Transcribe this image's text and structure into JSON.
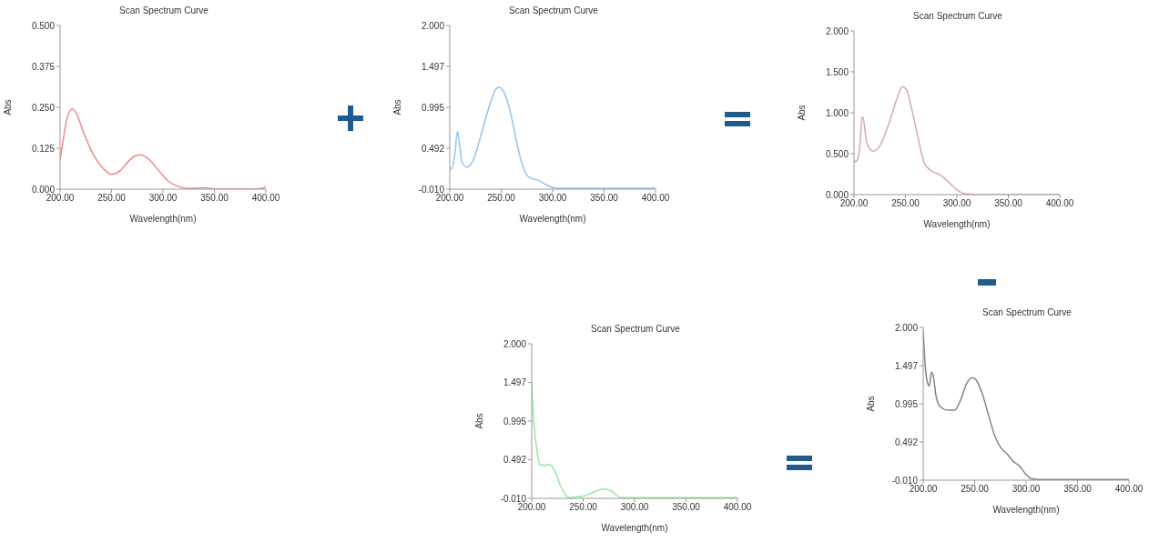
{
  "chart_data": [
    {
      "type": "line",
      "title": "Scan Spectrum Curve",
      "xlabel": "Wavelength(nm)",
      "ylabel": "Abs",
      "color": "#f08a8a",
      "x": [
        200,
        203,
        207,
        212,
        216,
        222,
        230,
        240,
        250,
        258,
        265,
        272,
        278,
        285,
        295,
        305,
        315,
        325,
        340,
        350,
        370,
        390,
        398,
        400
      ],
      "values": [
        0.09,
        0.15,
        0.22,
        0.245,
        0.23,
        0.18,
        0.12,
        0.07,
        0.045,
        0.055,
        0.08,
        0.1,
        0.105,
        0.095,
        0.06,
        0.025,
        0.008,
        0.002,
        0.004,
        0.001,
        0.001,
        0,
        0.004,
        0.008
      ],
      "xlim": [
        200,
        400
      ],
      "xticks": [
        {
          "value": 200,
          "label": "200.00"
        },
        {
          "value": 250,
          "label": "250.00"
        },
        {
          "value": 300,
          "label": "300.00"
        },
        {
          "value": 350,
          "label": "350.00"
        },
        {
          "value": 400,
          "label": "400.00"
        }
      ],
      "ylim": [
        0,
        0.5
      ],
      "yticks": [
        {
          "value": 0,
          "label": "0.000"
        },
        {
          "value": 0.125,
          "label": "0.125"
        },
        {
          "value": 0.25,
          "label": "0.250"
        },
        {
          "value": 0.375,
          "label": "0.375"
        },
        {
          "value": 0.5,
          "label": "0.500"
        }
      ]
    },
    {
      "type": "line",
      "title": "Scan Spectrum Curve",
      "xlabel": "Wavelength(nm)",
      "ylabel": "Abs",
      "color": "#92c5ee",
      "x": [
        200,
        202,
        205,
        207.5,
        209,
        212,
        216.5,
        222.5,
        231.6,
        239,
        245,
        248,
        252.6,
        258.6,
        264.7,
        270.7,
        276.7,
        285.7,
        294.7,
        304,
        310,
        350,
        400
      ],
      "values": [
        0.26,
        0.24,
        0.43,
        0.7,
        0.59,
        0.32,
        0.26,
        0.34,
        0.71,
        1.03,
        1.22,
        1.24,
        1.18,
        0.95,
        0.59,
        0.28,
        0.14,
        0.1,
        0.04,
        0,
        0,
        0,
        0
      ],
      "xlim": [
        200,
        400
      ],
      "xticks": [
        {
          "value": 200,
          "label": "200.00"
        },
        {
          "value": 250,
          "label": "250.00"
        },
        {
          "value": 300,
          "label": "300.00"
        },
        {
          "value": 350,
          "label": "350.00"
        },
        {
          "value": 400,
          "label": "400.00"
        }
      ],
      "ylim": [
        -0.01,
        2
      ],
      "yticks": [
        {
          "value": -0.01,
          "label": "-0.010"
        },
        {
          "value": 0.492,
          "label": "0.492"
        },
        {
          "value": 0.995,
          "label": "0.995"
        },
        {
          "value": 1.497,
          "label": "1.497"
        },
        {
          "value": 2,
          "label": "2.000"
        }
      ]
    },
    {
      "type": "line",
      "title": "Scan Spectrum Curve",
      "xlabel": "Wavelength(nm)",
      "ylabel": "Abs",
      "color": "#d6a8ad",
      "x": [
        200,
        201,
        203.7,
        206,
        207.8,
        209,
        212.4,
        218.6,
        224.8,
        234,
        242,
        247,
        251,
        255.8,
        262,
        268,
        274,
        283.7,
        293,
        302,
        308.5,
        320,
        400
      ],
      "values": [
        0.42,
        0.4,
        0.44,
        0.63,
        0.95,
        0.93,
        0.63,
        0.53,
        0.59,
        0.87,
        1.18,
        1.32,
        1.28,
        1.06,
        0.71,
        0.4,
        0.3,
        0.24,
        0.14,
        0.04,
        0.01,
        0,
        0
      ],
      "xlim": [
        200,
        400
      ],
      "xticks": [
        {
          "value": 200,
          "label": "200.00"
        },
        {
          "value": 250,
          "label": "250.00"
        },
        {
          "value": 300,
          "label": "300.00"
        },
        {
          "value": 350,
          "label": "350.00"
        },
        {
          "value": 400,
          "label": "400.00"
        }
      ],
      "ylim": [
        0,
        2
      ],
      "yticks": [
        {
          "value": 0,
          "label": "0.000"
        },
        {
          "value": 0.5,
          "label": "0.500"
        },
        {
          "value": 1,
          "label": "1.000"
        },
        {
          "value": 1.5,
          "label": "1.500"
        },
        {
          "value": 2,
          "label": "2.000"
        }
      ]
    },
    {
      "type": "line",
      "title": "Scan Spectrum Curve",
      "xlabel": "Wavelength(nm)",
      "ylabel": "Abs",
      "color": "#92eb98",
      "x": [
        200,
        202,
        205,
        208,
        212.8,
        217.4,
        222,
        226.5,
        232.6,
        237,
        244.7,
        250.8,
        259.9,
        270.6,
        276.7,
        282.8,
        287,
        300,
        400
      ],
      "values": [
        1.5,
        0.99,
        0.63,
        0.43,
        0.42,
        0.43,
        0.36,
        0.2,
        0.04,
        0,
        0.01,
        0.02,
        0.07,
        0.11,
        0.09,
        0.03,
        0,
        0,
        0
      ],
      "xlim": [
        200,
        400
      ],
      "xticks": [
        {
          "value": 200,
          "label": "200.00"
        },
        {
          "value": 250,
          "label": "250.00"
        },
        {
          "value": 300,
          "label": "300.00"
        },
        {
          "value": 350,
          "label": "350.00"
        },
        {
          "value": 400,
          "label": "400.00"
        }
      ],
      "ylim": [
        -0.01,
        2
      ],
      "yticks": [
        {
          "value": -0.01,
          "label": "-0.010"
        },
        {
          "value": 0.492,
          "label": "0.492"
        },
        {
          "value": 0.995,
          "label": "0.995"
        },
        {
          "value": 1.497,
          "label": "1.497"
        },
        {
          "value": 2,
          "label": "2.000"
        }
      ]
    },
    {
      "type": "line",
      "title": "Scan Spectrum Curve",
      "xlabel": "Wavelength(nm)",
      "ylabel": "Abs",
      "color": "#858585",
      "x": [
        200,
        202,
        204.2,
        206,
        208,
        209.6,
        212.6,
        217,
        224.5,
        230.5,
        236.5,
        242.5,
        247.8,
        251.4,
        257.4,
        263.4,
        269.4,
        275.3,
        281.3,
        287.3,
        293.3,
        299,
        305,
        311,
        330,
        400
      ],
      "values": [
        1.96,
        1.49,
        1.27,
        1.23,
        1.41,
        1.37,
        1.09,
        0.95,
        0.91,
        0.91,
        1.05,
        1.27,
        1.34,
        1.31,
        1.13,
        0.85,
        0.58,
        0.42,
        0.34,
        0.24,
        0.18,
        0.08,
        0.01,
        0,
        0,
        0
      ],
      "xlim": [
        200,
        400
      ],
      "xticks": [
        {
          "value": 200,
          "label": "200.00"
        },
        {
          "value": 250,
          "label": "250.00"
        },
        {
          "value": 300,
          "label": "300.00"
        },
        {
          "value": 350,
          "label": "350.00"
        },
        {
          "value": 400,
          "label": "400.00"
        }
      ],
      "ylim": [
        -0.01,
        2
      ],
      "yticks": [
        {
          "value": -0.01,
          "label": "-0.010"
        },
        {
          "value": 0.492,
          "label": "0.492"
        },
        {
          "value": 0.995,
          "label": "0.995"
        },
        {
          "value": 1.497,
          "label": "1.497"
        },
        {
          "value": 2,
          "label": "2.000"
        }
      ]
    }
  ]
}
